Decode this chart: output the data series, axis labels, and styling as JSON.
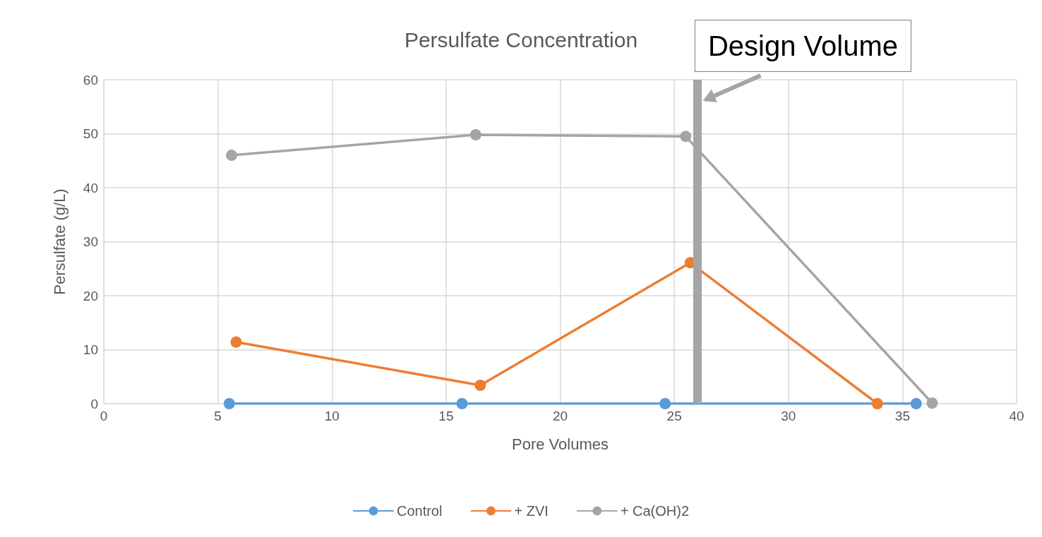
{
  "chart_data": {
    "type": "line",
    "title": "Persulfate Concentration",
    "xlabel": "Pore Volumes",
    "ylabel": "Persulfate (g/L)",
    "xlim": [
      0,
      40
    ],
    "xticks": [
      0,
      5,
      10,
      15,
      20,
      25,
      30,
      35,
      40
    ],
    "ylim": [
      0,
      60
    ],
    "yticks": [
      0,
      10,
      20,
      30,
      40,
      50,
      60
    ],
    "grid": true,
    "legend": "bottom",
    "marker": "circle",
    "line_style": "solid",
    "series": [
      {
        "name": "Control",
        "color": "#5b9bd5",
        "x": [
          5.5,
          15.7,
          24.6,
          35.6
        ],
        "values": [
          0,
          0,
          0,
          0
        ]
      },
      {
        "name": "+ ZVI",
        "color": "#ed7d31",
        "x": [
          5.8,
          16.5,
          25.7,
          33.9
        ],
        "values": [
          11.4,
          3.4,
          26.1,
          0
        ]
      },
      {
        "name": "+ Ca(OH)2",
        "color": "#a5a5a5",
        "x": [
          5.6,
          16.3,
          25.5,
          36.3
        ],
        "values": [
          46.0,
          49.8,
          49.5,
          0.1
        ]
      }
    ],
    "ref_lines": [
      {
        "axis": "x",
        "value": 26,
        "label": "Design Volume",
        "color": "#a5a5a5",
        "line_style": "solid"
      }
    ]
  }
}
